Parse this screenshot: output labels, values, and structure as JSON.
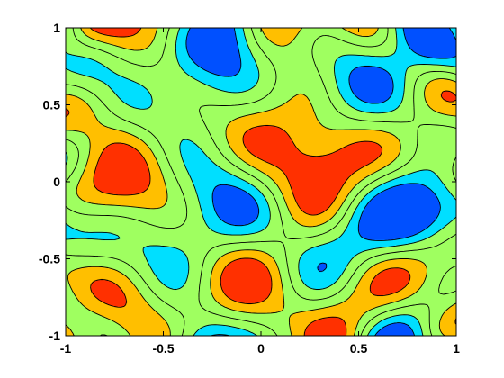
{
  "chart_data": {
    "type": "heatmap",
    "title": "",
    "xlabel": "",
    "ylabel": "",
    "xlim": [
      -1,
      1
    ],
    "ylim": [
      -1,
      1
    ],
    "xticks": [
      -1,
      -0.5,
      0,
      0.5,
      1
    ],
    "yticks": [
      -1,
      -0.5,
      0,
      0.5,
      1
    ],
    "xtick_labels": [
      "-1",
      "-0.5",
      "0",
      "0.5",
      "1"
    ],
    "ytick_labels": [
      "-1",
      "-0.5",
      "0",
      "0.5",
      "1"
    ],
    "grid": false,
    "legend": "none",
    "colormap": "jet",
    "contour_levels": [
      -0.6,
      -0.3,
      0,
      0.3,
      0.6
    ],
    "colors": {
      "level_1": "#00008F",
      "level_2": "#0050FF",
      "level_3": "#00DFFF",
      "level_4": "#9FFF60",
      "level_5": "#FFBF00",
      "level_6": "#FF3000",
      "level_7": "#8F0000",
      "contour_line": "#000000"
    }
  }
}
